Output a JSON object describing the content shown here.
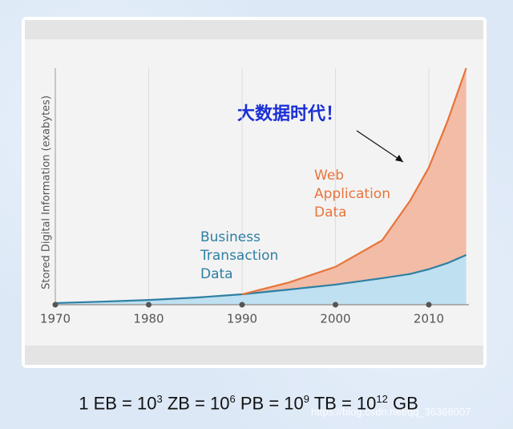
{
  "chart_data": {
    "type": "stacked-area",
    "y_label": "Stored Digital Information (exabytes)",
    "annotation": "大数据时代！",
    "x": [
      1970,
      1975,
      1980,
      1985,
      1990,
      1995,
      2000,
      2005,
      2008,
      2010,
      2012,
      2014
    ],
    "series": [
      {
        "name": "Business Transaction Data",
        "color": "#2e7fa3",
        "fill": "#bfe0f0",
        "values": [
          0.7,
          1.3,
          2,
          3,
          4.4,
          6.4,
          8.5,
          11.2,
          13,
          15,
          17.6,
          21
        ]
      },
      {
        "name": "Web Application Data",
        "color": "#e8743b",
        "fill": "#f2bca6",
        "values": [
          null,
          null,
          null,
          null,
          0,
          3,
          7.5,
          16,
          31,
          43,
          60,
          79
        ]
      }
    ],
    "xlim": [
      1970,
      2014
    ],
    "xticks": [
      1970,
      1980,
      1990,
      2000,
      2010
    ],
    "ylim": [
      0,
      100
    ],
    "grid": true
  },
  "footer": {
    "parts": [
      "1 EB = 10",
      "3",
      " ZB = 10",
      "6",
      " PB = 10",
      "9",
      " TB = 10",
      "12",
      " GB"
    ]
  },
  "watermark": "https://blog.csdn.net/qq_36368007"
}
